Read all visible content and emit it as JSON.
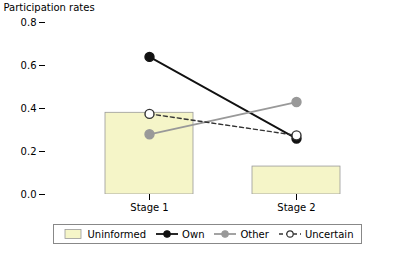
{
  "chart_data": {
    "type": "bar",
    "categories": [
      "Stage 1",
      "Stage 2"
    ],
    "series": [
      {
        "name": "Uninformed",
        "type": "bar",
        "color": "#f5f5c8",
        "values": [
          0.38,
          0.13
        ]
      },
      {
        "name": "Own",
        "type": "line",
        "color": "#111111",
        "marker": "circle",
        "line_style": "solid",
        "values": [
          0.64,
          0.26
        ]
      },
      {
        "name": "Other",
        "type": "line",
        "color": "#999999",
        "marker": "circle",
        "line_style": "solid",
        "values": [
          0.28,
          0.43
        ]
      },
      {
        "name": "Uncertain",
        "type": "line",
        "color": "#333333",
        "marker": "circle_open",
        "line_style": "dashed",
        "values": [
          0.375,
          0.275
        ]
      }
    ],
    "ylabel": "Participation rates",
    "ylim": [
      0.0,
      0.8
    ],
    "yticks": [
      {
        "value": 0.0,
        "label": "0.0"
      },
      0.2,
      0.4,
      0.6,
      0.8
    ],
    "legend": "bottom"
  }
}
